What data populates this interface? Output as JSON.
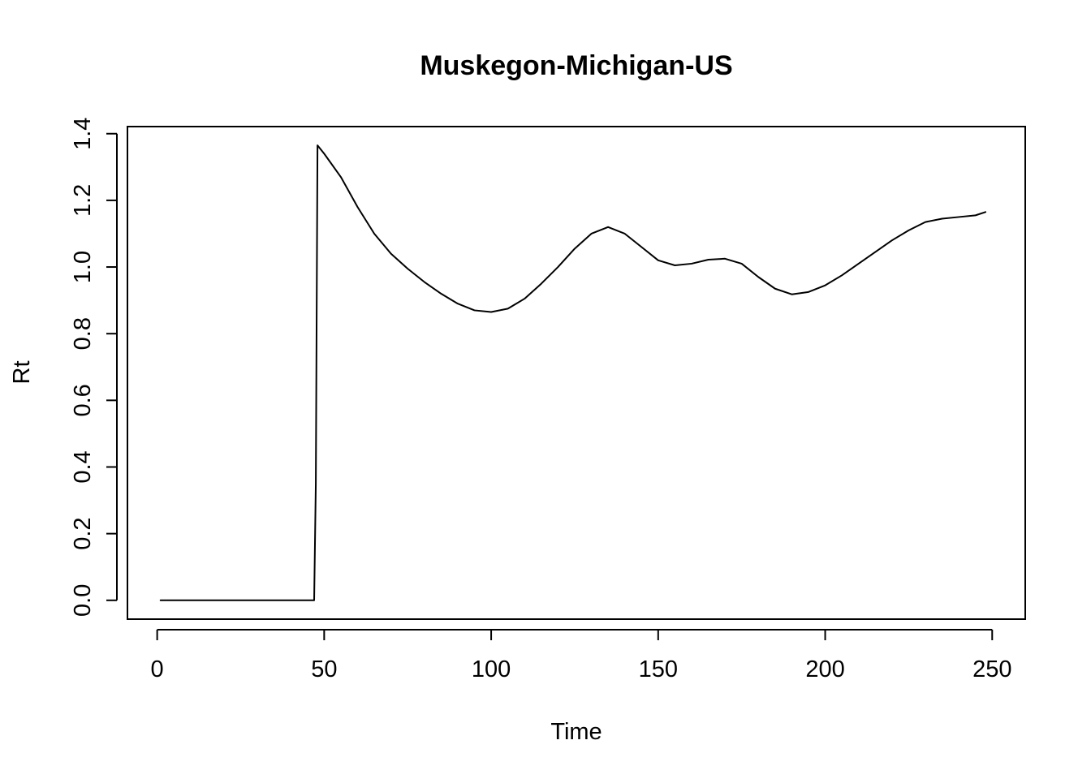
{
  "chart_data": {
    "type": "line",
    "title": "Muskegon-Michigan-US",
    "xlabel": "Time",
    "ylabel": "Rt",
    "xlim": [
      -8.9,
      259.9
    ],
    "ylim": [
      -0.0565,
      1.4213
    ],
    "x_ticks": [
      0,
      50,
      100,
      150,
      200,
      250
    ],
    "x_tick_labels": [
      "0",
      "50",
      "100",
      "150",
      "200",
      "250"
    ],
    "y_ticks": [
      0.0,
      0.2,
      0.4,
      0.6,
      0.8,
      1.0,
      1.2,
      1.4
    ],
    "y_tick_labels": [
      "0.0",
      "0.2",
      "0.4",
      "0.6",
      "0.8",
      "1.0",
      "1.2",
      "1.4"
    ],
    "grid": false,
    "series": [
      {
        "color": "#000000",
        "x": [
          1,
          10,
          20,
          30,
          40,
          47,
          47.5,
          48,
          50,
          55,
          60,
          65,
          70,
          75,
          80,
          85,
          90,
          95,
          100,
          105,
          110,
          115,
          120,
          125,
          130,
          135,
          140,
          145,
          150,
          155,
          160,
          165,
          170,
          175,
          180,
          185,
          190,
          195,
          200,
          205,
          210,
          215,
          220,
          225,
          230,
          235,
          240,
          245,
          248
        ],
        "y": [
          0,
          0,
          0,
          0,
          0,
          0,
          0.35,
          1.365,
          1.34,
          1.27,
          1.18,
          1.1,
          1.04,
          0.995,
          0.955,
          0.92,
          0.89,
          0.87,
          0.865,
          0.875,
          0.905,
          0.95,
          1.0,
          1.055,
          1.1,
          1.12,
          1.1,
          1.06,
          1.02,
          1.005,
          1.01,
          1.022,
          1.025,
          1.01,
          0.97,
          0.935,
          0.918,
          0.925,
          0.945,
          0.975,
          1.01,
          1.045,
          1.08,
          1.11,
          1.135,
          1.145,
          1.15,
          1.155,
          1.165
        ]
      }
    ]
  }
}
